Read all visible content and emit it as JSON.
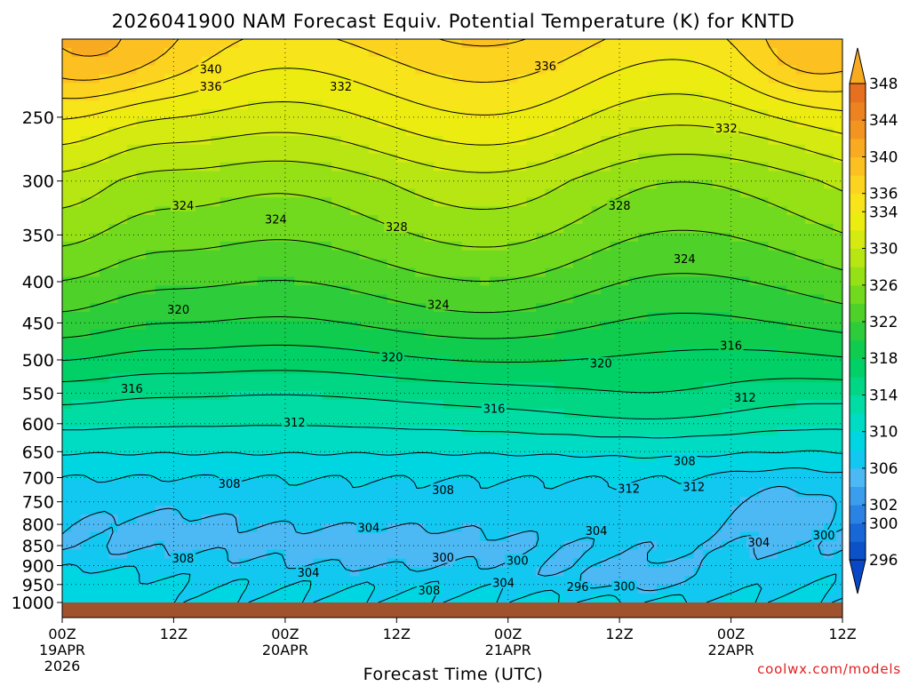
{
  "chart_data": {
    "type": "heatmap",
    "title": "2026041900 NAM Forecast Equiv. Potential Temperature (K) for KNTD",
    "xlabel": "Forecast Time (UTC)",
    "ylabel": "",
    "ylim": [
      1000,
      200
    ],
    "xlim": [
      0,
      84
    ],
    "yscale": "log",
    "grid": true,
    "x_ticks": [
      {
        "x": 0,
        "label": "00Z",
        "sub": "19APR",
        "sub2": "2026"
      },
      {
        "x": 12,
        "label": "12Z",
        "sub": "",
        "sub2": ""
      },
      {
        "x": 24,
        "label": "00Z",
        "sub": "20APR",
        "sub2": ""
      },
      {
        "x": 36,
        "label": "12Z",
        "sub": "",
        "sub2": ""
      },
      {
        "x": 48,
        "label": "00Z",
        "sub": "21APR",
        "sub2": ""
      },
      {
        "x": 60,
        "label": "12Z",
        "sub": "",
        "sub2": ""
      },
      {
        "x": 72,
        "label": "00Z",
        "sub": "22APR",
        "sub2": ""
      },
      {
        "x": 84,
        "label": "12Z",
        "sub": "",
        "sub2": ""
      }
    ],
    "y_ticks": [
      250,
      300,
      350,
      400,
      450,
      500,
      550,
      600,
      650,
      700,
      750,
      800,
      850,
      900,
      950,
      1000
    ],
    "colorbar": {
      "levels": [
        296,
        298,
        300,
        302,
        304,
        306,
        308,
        310,
        312,
        314,
        316,
        318,
        320,
        322,
        324,
        326,
        328,
        330,
        332,
        334,
        336,
        338,
        340,
        342,
        344,
        346,
        348
      ],
      "labels": [
        296,
        300,
        302,
        306,
        310,
        314,
        318,
        322,
        326,
        330,
        334,
        336,
        340,
        344,
        348
      ],
      "colors": [
        "#0b52c8",
        "#1767d6",
        "#2a82e2",
        "#3b9eec",
        "#4cb8f4",
        "#12c8f0",
        "#00d6e2",
        "#00dcc4",
        "#00dca4",
        "#00d684",
        "#00d066",
        "#10cc4e",
        "#2ccc3a",
        "#4ed22a",
        "#72da1e",
        "#96e016",
        "#b8e612",
        "#d4ea10",
        "#ecec10",
        "#f8e41a",
        "#fcd420",
        "#fcc020",
        "#f8aa20",
        "#f29420",
        "#ec8220",
        "#e67020"
      ]
    },
    "contour_labels": [
      {
        "x": 16.0,
        "p": 218,
        "text": "340"
      },
      {
        "x": 16.0,
        "p": 229,
        "text": "336"
      },
      {
        "x": 52.0,
        "p": 216,
        "text": "336"
      },
      {
        "x": 30.0,
        "p": 229,
        "text": "332"
      },
      {
        "x": 71.5,
        "p": 258,
        "text": "332"
      },
      {
        "x": 13.0,
        "p": 322,
        "text": "324"
      },
      {
        "x": 23.0,
        "p": 335,
        "text": "324"
      },
      {
        "x": 36.0,
        "p": 342,
        "text": "328"
      },
      {
        "x": 60.0,
        "p": 322,
        "text": "328"
      },
      {
        "x": 67.0,
        "p": 375,
        "text": "324"
      },
      {
        "x": 40.5,
        "p": 427,
        "text": "324"
      },
      {
        "x": 12.5,
        "p": 433,
        "text": "320"
      },
      {
        "x": 35.5,
        "p": 496,
        "text": "320"
      },
      {
        "x": 58.0,
        "p": 505,
        "text": "320"
      },
      {
        "x": 72.0,
        "p": 480,
        "text": "316"
      },
      {
        "x": 7.5,
        "p": 543,
        "text": "316"
      },
      {
        "x": 46.5,
        "p": 575,
        "text": "316"
      },
      {
        "x": 25.0,
        "p": 598,
        "text": "312"
      },
      {
        "x": 73.5,
        "p": 557,
        "text": "312"
      },
      {
        "x": 67.0,
        "p": 668,
        "text": "308"
      },
      {
        "x": 68.0,
        "p": 719,
        "text": "312"
      },
      {
        "x": 61.0,
        "p": 723,
        "text": "312"
      },
      {
        "x": 18.0,
        "p": 713,
        "text": "308"
      },
      {
        "x": 41.0,
        "p": 725,
        "text": "308"
      },
      {
        "x": 33.0,
        "p": 808,
        "text": "304"
      },
      {
        "x": 57.5,
        "p": 815,
        "text": "304"
      },
      {
        "x": 75.0,
        "p": 842,
        "text": "304"
      },
      {
        "x": 82.0,
        "p": 826,
        "text": "300"
      },
      {
        "x": 13.0,
        "p": 882,
        "text": "308"
      },
      {
        "x": 26.5,
        "p": 918,
        "text": "304"
      },
      {
        "x": 41.0,
        "p": 880,
        "text": "300"
      },
      {
        "x": 49.0,
        "p": 887,
        "text": "300"
      },
      {
        "x": 47.5,
        "p": 946,
        "text": "304"
      },
      {
        "x": 55.5,
        "p": 957,
        "text": "296"
      },
      {
        "x": 60.5,
        "p": 955,
        "text": "300"
      },
      {
        "x": 39.5,
        "p": 966,
        "text": "308"
      }
    ]
  },
  "watermark": "coolwx.com/models"
}
